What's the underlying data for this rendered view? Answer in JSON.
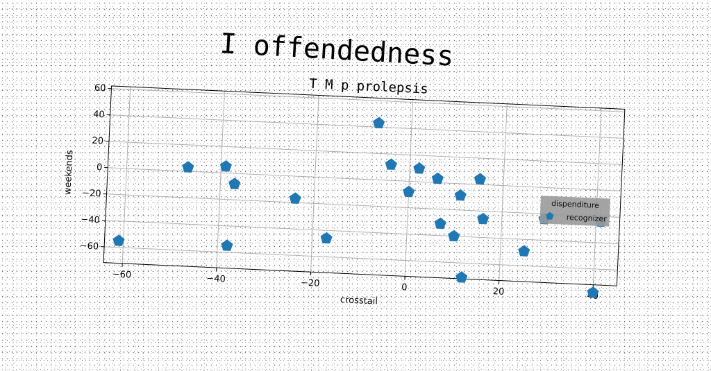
{
  "main_title": "I offendedness",
  "chart_data": {
    "type": "scatter",
    "title": "T M p prolepsis",
    "xlabel": "crosstail",
    "ylabel": "weekends",
    "xlim": [
      -64,
      45
    ],
    "ylim": [
      -72,
      62
    ],
    "xticks": [
      -60,
      -40,
      -20,
      0,
      20,
      40
    ],
    "yticks": [
      -60,
      -40,
      -20,
      0,
      20,
      40,
      60
    ],
    "grid": true,
    "legend": {
      "title": "dispenditure",
      "placement": "right",
      "entries": [
        "recognizer"
      ]
    },
    "marker": "pentagon",
    "marker_color": "#1f77b4",
    "series": [
      {
        "name": "recognizer",
        "points": [
          [
            -61,
            -55
          ],
          [
            -47,
            3
          ],
          [
            -39,
            5
          ],
          [
            -38,
            -55
          ],
          [
            -37,
            -8
          ],
          [
            -24,
            -17
          ],
          [
            -17,
            -46
          ],
          [
            -7,
            43
          ],
          [
            -4,
            12
          ],
          [
            0,
            -8
          ],
          [
            2,
            10
          ],
          [
            6,
            3
          ],
          [
            7,
            -31
          ],
          [
            10,
            -40
          ],
          [
            11,
            -9
          ],
          [
            12,
            -71
          ],
          [
            15,
            4
          ],
          [
            16,
            -26
          ],
          [
            25,
            -49
          ],
          [
            29,
            -24
          ],
          [
            40,
            -78
          ],
          [
            41,
            -24
          ]
        ]
      }
    ]
  }
}
